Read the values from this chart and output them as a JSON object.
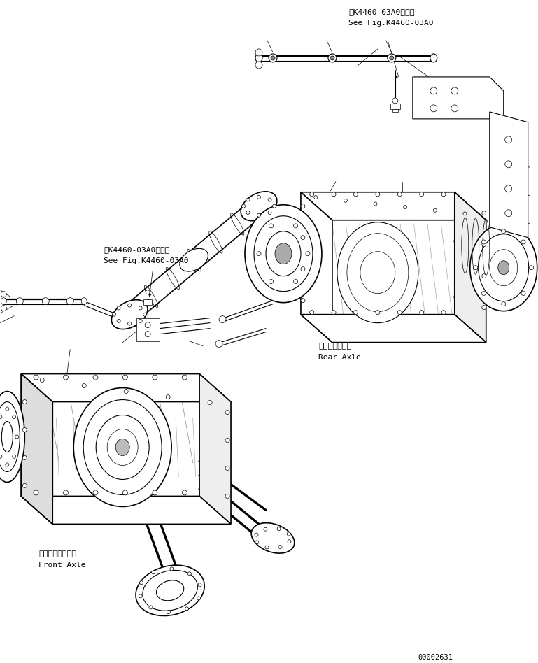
{
  "bg_color": "#ffffff",
  "fig_width": 7.69,
  "fig_height": 9.48,
  "dpi": 100,
  "labels": {
    "top_ref_ja": "第K4460-03A0図参照",
    "top_ref_en": "See Fig.K4460-03A0",
    "mid_ref_ja": "第K4460-03A0図参照",
    "mid_ref_en": "See Fig.K4460-03A0",
    "rear_axle_ja": "リヤーアクスル",
    "rear_axle_en": "Rear Axle",
    "front_axle_ja": "フロントアクスル",
    "front_axle_en": "Front Axle",
    "part_number": "00002631"
  },
  "text_color": "#000000",
  "line_color": "#000000",
  "lw_thick": 1.2,
  "lw_med": 0.8,
  "lw_thin": 0.5
}
